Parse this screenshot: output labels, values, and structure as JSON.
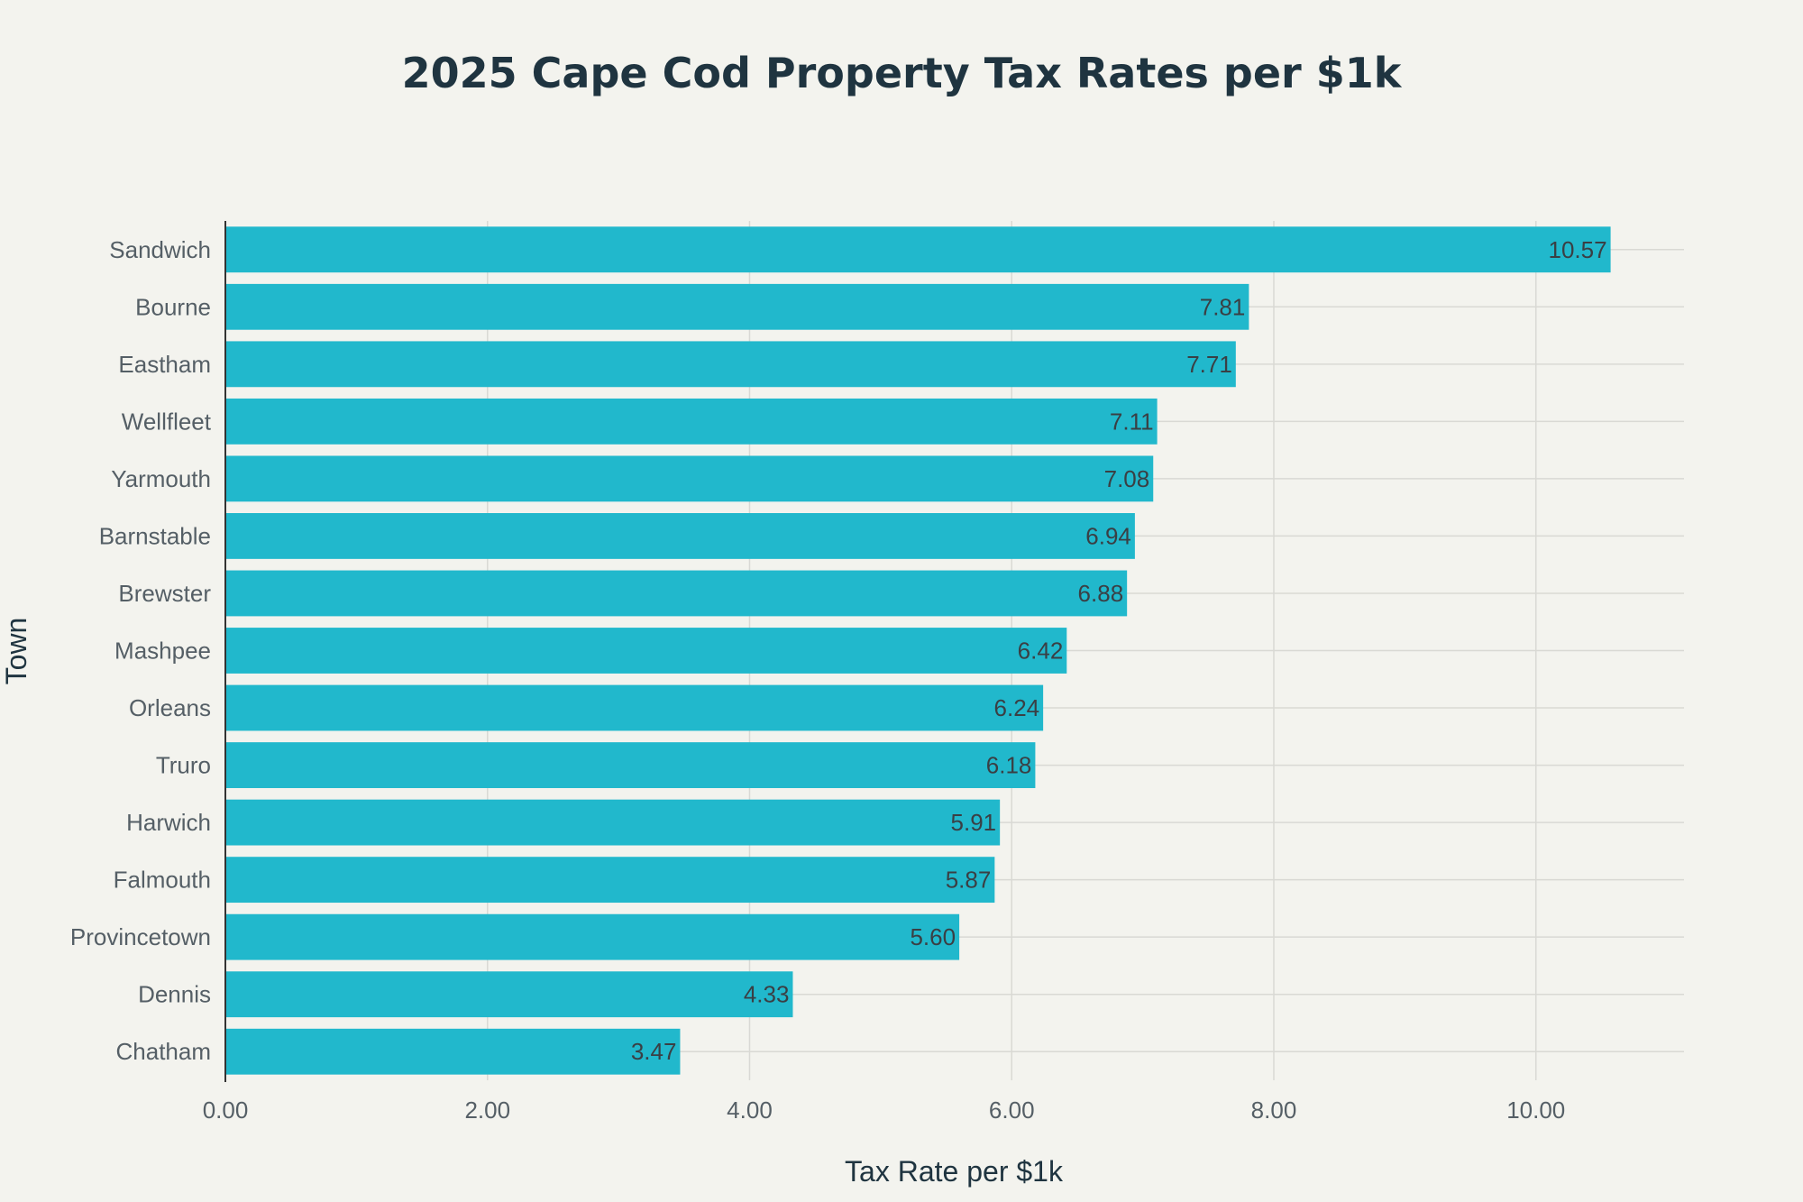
{
  "chart_data": {
    "type": "bar",
    "orientation": "horizontal",
    "title": "2025 Cape Cod Property Tax Rates per $1k",
    "xlabel": "Tax Rate per $1k",
    "ylabel": "Town",
    "categories": [
      "Sandwich",
      "Bourne",
      "Eastham",
      "Wellfleet",
      "Yarmouth",
      "Barnstable",
      "Brewster",
      "Mashpee",
      "Orleans",
      "Truro",
      "Harwich",
      "Falmouth",
      "Provincetown",
      "Dennis",
      "Chatham"
    ],
    "values": [
      10.57,
      7.81,
      7.71,
      7.11,
      7.08,
      6.94,
      6.88,
      6.42,
      6.24,
      6.18,
      5.91,
      5.87,
      5.6,
      4.33,
      3.47
    ],
    "value_labels": [
      "10.57",
      "7.81",
      "7.71",
      "7.11",
      "7.08",
      "6.94",
      "6.88",
      "6.42",
      "6.24",
      "6.18",
      "5.91",
      "5.87",
      "5.60",
      "4.33",
      "3.47"
    ],
    "xticks": [
      0,
      2,
      4,
      6,
      8,
      10
    ],
    "xtick_labels": [
      "0.00",
      "2.00",
      "4.00",
      "6.00",
      "8.00",
      "10.00"
    ],
    "xlim": [
      0,
      11.13
    ],
    "grid": true,
    "legend": "none",
    "bar_color": "#21b8cc",
    "background_color": "#f3f3ee"
  }
}
